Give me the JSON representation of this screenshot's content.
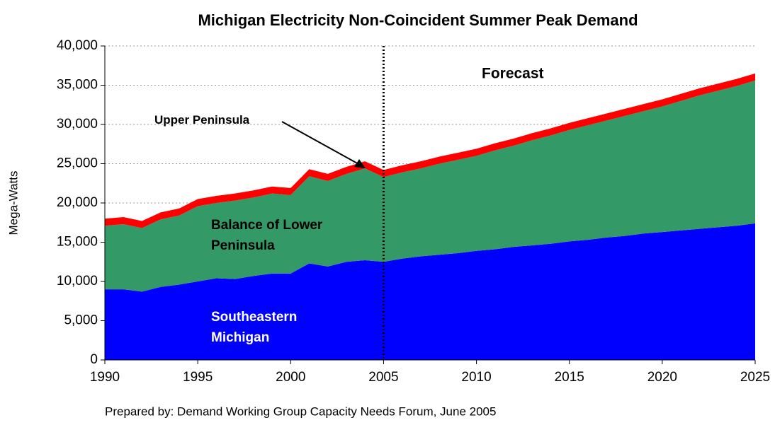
{
  "chart_data": {
    "type": "stacked_area",
    "title": "Michigan Electricity Non-Coincident Summer Peak Demand",
    "ylabel": "Mega-Watts",
    "footnote": "Prepared by: Demand Working Group Capacity Needs Forum, June 2005",
    "forecast_label": "Forecast",
    "forecast_start": 2005,
    "x": [
      1990,
      1991,
      1992,
      1993,
      1994,
      1995,
      1996,
      1997,
      1998,
      1999,
      2000,
      2001,
      2002,
      2003,
      2004,
      2005,
      2006,
      2007,
      2008,
      2009,
      2010,
      2011,
      2012,
      2013,
      2014,
      2015,
      2016,
      2017,
      2018,
      2019,
      2020,
      2021,
      2022,
      2023,
      2024,
      2025
    ],
    "series": [
      {
        "name": "Southeastern Michigan",
        "color": "#0000ff",
        "values": [
          9000,
          9000,
          8700,
          9300,
          9600,
          10000,
          10400,
          10300,
          10700,
          11000,
          11000,
          12300,
          11900,
          12500,
          12700,
          12500,
          12900,
          13200,
          13400,
          13600,
          13900,
          14100,
          14400,
          14600,
          14800,
          15100,
          15300,
          15600,
          15800,
          16100,
          16300,
          16500,
          16700,
          16900,
          17100,
          17400
        ]
      },
      {
        "name": "Balance of Lower Peninsula",
        "color": "#339966",
        "values": [
          8100,
          8300,
          8100,
          8600,
          8800,
          9600,
          9600,
          10000,
          10000,
          10200,
          10000,
          11100,
          10900,
          11200,
          11700,
          10800,
          11000,
          11200,
          11600,
          11900,
          12100,
          12600,
          12900,
          13400,
          13800,
          14200,
          14600,
          14900,
          15300,
          15600,
          16000,
          16500,
          17000,
          17400,
          17800,
          18200
        ]
      },
      {
        "name": "Upper Peninsula",
        "color": "#ff0000",
        "values": [
          900,
          900,
          900,
          900,
          900,
          900,
          900,
          900,
          900,
          900,
          900,
          900,
          900,
          900,
          900,
          900,
          900,
          900,
          900,
          900,
          900,
          900,
          900,
          900,
          900,
          900,
          900,
          900,
          900,
          900,
          900,
          900,
          900,
          900,
          900,
          900
        ]
      }
    ],
    "xlim": [
      1990,
      2025
    ],
    "xticks": [
      1990,
      1995,
      2000,
      2005,
      2010,
      2015,
      2020,
      2025
    ],
    "ylim": [
      0,
      40000
    ],
    "yticks": [
      0,
      {
        "value": 5000,
        "label": "5,000"
      },
      {
        "value": 10000,
        "label": "10,000"
      },
      {
        "value": 15000,
        "label": "15,000"
      },
      {
        "value": 20000,
        "label": "20,000"
      },
      {
        "value": 25000,
        "label": "25,000"
      },
      {
        "value": 30000,
        "label": "30,000"
      },
      {
        "value": 35000,
        "label": "35,000"
      },
      {
        "value": 40000,
        "label": "40,000"
      }
    ],
    "grid": true
  }
}
